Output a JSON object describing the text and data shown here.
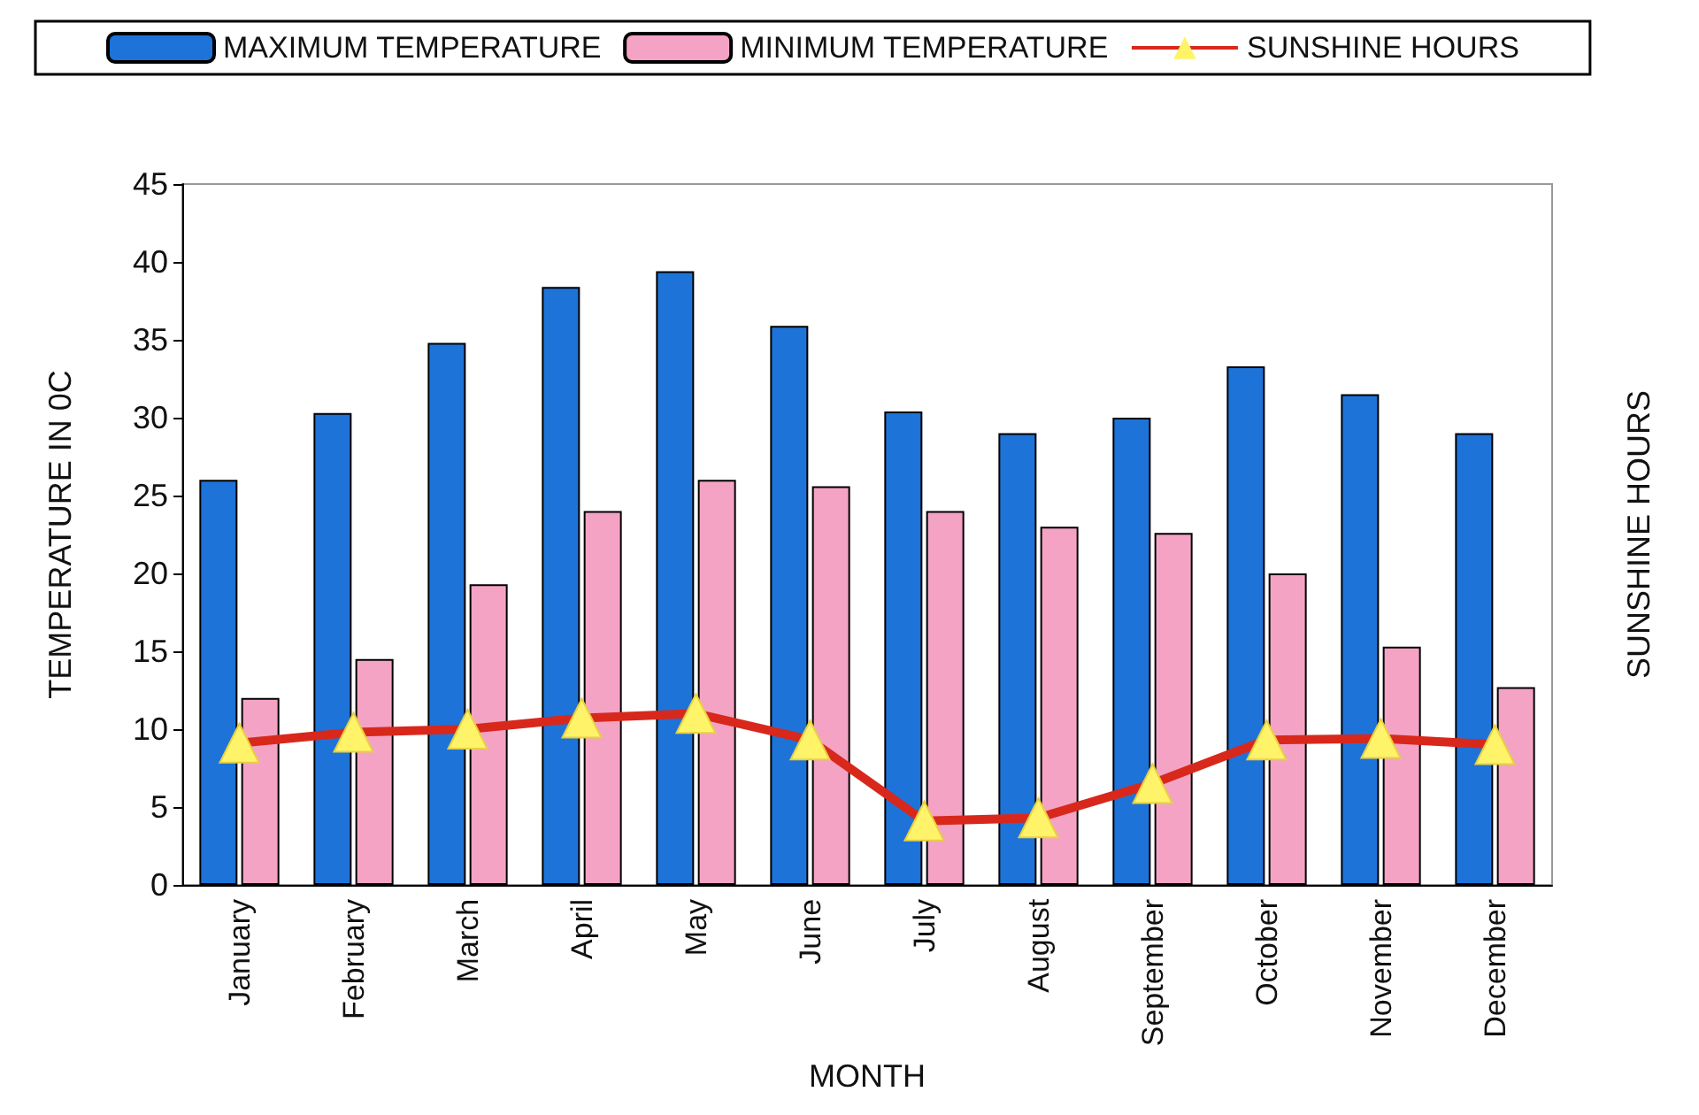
{
  "chart_data": {
    "type": "bar",
    "categories": [
      "January",
      "February",
      "March",
      "April",
      "May",
      "June",
      "July",
      "August",
      "September",
      "October",
      "November",
      "December"
    ],
    "series": [
      {
        "name": "MAXIMUM TEMPERATURE",
        "color": "#1e73d8",
        "values": [
          26,
          30.3,
          34.8,
          38.4,
          39.4,
          35.9,
          30.4,
          29,
          30,
          33.3,
          31.5,
          29
        ]
      },
      {
        "name": "MINIMUM TEMPERATURE",
        "color": "#f4a3c4",
        "values": [
          12,
          14.5,
          19.3,
          24,
          26,
          25.6,
          24,
          23,
          22.6,
          20,
          15.3,
          12.7
        ]
      },
      {
        "name": "SUNSHINE HOURS",
        "type": "line",
        "color": "#d8281c",
        "marker": "triangle",
        "values": [
          9.1,
          9.8,
          10,
          10.7,
          11,
          9.3,
          4.1,
          4.3,
          6.5,
          9.3,
          9.4,
          9
        ]
      }
    ],
    "xlabel": "MONTH",
    "ylabel": "TEMPERATURE IN 0C",
    "y2label": "SUNSHINE HOURS",
    "ylim": [
      0,
      45
    ],
    "yticks": [
      0,
      5,
      10,
      15,
      20,
      25,
      30,
      35,
      40,
      45
    ],
    "grid": false,
    "legend": "top"
  }
}
